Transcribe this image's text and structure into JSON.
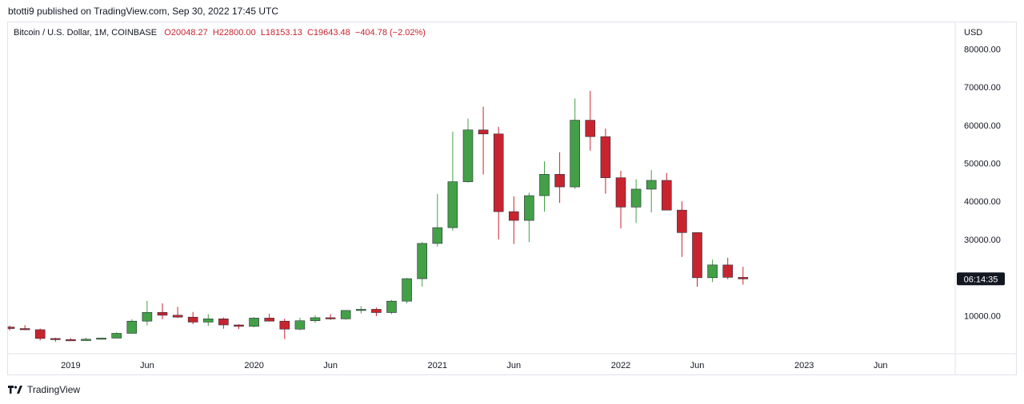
{
  "published": "btotti9 published on TradingView.com, Sep 30, 2022 17:45 UTC",
  "footer": {
    "brand": "TradingView",
    "logo_icon": "tradingview-logo-icon"
  },
  "legend": {
    "symbol": "Bitcoin / U.S. Dollar, 1M, COINBASE",
    "open": "O20048.27",
    "high": "H22800.00",
    "low": "L18153.13",
    "close": "C19643.48",
    "change": "−404.78 (−2.02%)"
  },
  "colors": {
    "up": "#43a047",
    "down": "#c8242f",
    "grid": "#f0f3fa",
    "axis": "#131722",
    "price_tag_bg": "#131722"
  },
  "chart_data": {
    "type": "candlestick",
    "title": "Bitcoin / U.S. Dollar, 1M, COINBASE",
    "currency_label": "USD",
    "ylim": [
      0,
      87000
    ],
    "y_ticks": [
      10000,
      20000,
      30000,
      40000,
      50000,
      60000,
      70000,
      80000
    ],
    "y_tick_labels": [
      "10000.00",
      "20000.00",
      "30000.00",
      "40000.00",
      "50000.00",
      "60000.00",
      "70000.00",
      "80000.00"
    ],
    "x_ticks": [
      {
        "label": "2019",
        "date": "2019-01"
      },
      {
        "label": "Jun",
        "date": "2019-06"
      },
      {
        "label": "2020",
        "date": "2020-01"
      },
      {
        "label": "Jun",
        "date": "2020-06"
      },
      {
        "label": "2021",
        "date": "2021-01"
      },
      {
        "label": "Jun",
        "date": "2021-06"
      },
      {
        "label": "2022",
        "date": "2022-01"
      },
      {
        "label": "Jun",
        "date": "2022-06"
      },
      {
        "label": "2023",
        "date": "2023-01"
      },
      {
        "label": "Jun",
        "date": "2023-06"
      }
    ],
    "last_price_tag": "06:14:35",
    "candles": [
      {
        "date": "2018-09",
        "o": 7000,
        "h": 7400,
        "l": 6100,
        "c": 6600
      },
      {
        "date": "2018-10",
        "o": 6600,
        "h": 7500,
        "l": 6200,
        "c": 6300
      },
      {
        "date": "2018-11",
        "o": 6300,
        "h": 6600,
        "l": 3500,
        "c": 4000
      },
      {
        "date": "2018-12",
        "o": 4000,
        "h": 4200,
        "l": 3150,
        "c": 3700
      },
      {
        "date": "2019-01",
        "o": 3700,
        "h": 4100,
        "l": 3350,
        "c": 3450
      },
      {
        "date": "2019-02",
        "o": 3450,
        "h": 4200,
        "l": 3350,
        "c": 3800
      },
      {
        "date": "2019-03",
        "o": 3800,
        "h": 4150,
        "l": 3700,
        "c": 4100
      },
      {
        "date": "2019-04",
        "o": 4100,
        "h": 5600,
        "l": 4050,
        "c": 5350
      },
      {
        "date": "2019-05",
        "o": 5350,
        "h": 9050,
        "l": 5300,
        "c": 8550
      },
      {
        "date": "2019-06",
        "o": 8550,
        "h": 13880,
        "l": 7450,
        "c": 10850
      },
      {
        "date": "2019-07",
        "o": 10850,
        "h": 13200,
        "l": 9050,
        "c": 10100
      },
      {
        "date": "2019-08",
        "o": 10100,
        "h": 12300,
        "l": 9400,
        "c": 9600
      },
      {
        "date": "2019-09",
        "o": 9600,
        "h": 10950,
        "l": 7750,
        "c": 8300
      },
      {
        "date": "2019-10",
        "o": 8300,
        "h": 10400,
        "l": 7300,
        "c": 9150
      },
      {
        "date": "2019-11",
        "o": 9150,
        "h": 9500,
        "l": 6550,
        "c": 7550
      },
      {
        "date": "2019-12",
        "o": 7550,
        "h": 7700,
        "l": 6450,
        "c": 7200
      },
      {
        "date": "2020-01",
        "o": 7200,
        "h": 9600,
        "l": 6900,
        "c": 9350
      },
      {
        "date": "2020-02",
        "o": 9350,
        "h": 10500,
        "l": 8450,
        "c": 8550
      },
      {
        "date": "2020-03",
        "o": 8550,
        "h": 9200,
        "l": 3850,
        "c": 6450
      },
      {
        "date": "2020-04",
        "o": 6450,
        "h": 9450,
        "l": 6150,
        "c": 8650
      },
      {
        "date": "2020-05",
        "o": 8650,
        "h": 10100,
        "l": 8100,
        "c": 9450
      },
      {
        "date": "2020-06",
        "o": 9450,
        "h": 10400,
        "l": 8900,
        "c": 9150
      },
      {
        "date": "2020-07",
        "o": 9150,
        "h": 11450,
        "l": 8950,
        "c": 11350
      },
      {
        "date": "2020-08",
        "o": 11350,
        "h": 12500,
        "l": 10550,
        "c": 11650
      },
      {
        "date": "2020-09",
        "o": 11650,
        "h": 12100,
        "l": 9850,
        "c": 10800
      },
      {
        "date": "2020-10",
        "o": 10800,
        "h": 14100,
        "l": 10400,
        "c": 13800
      },
      {
        "date": "2020-11",
        "o": 13800,
        "h": 19900,
        "l": 13200,
        "c": 19700
      },
      {
        "date": "2020-12",
        "o": 19700,
        "h": 29300,
        "l": 17600,
        "c": 28950
      },
      {
        "date": "2021-01",
        "o": 28950,
        "h": 41950,
        "l": 28150,
        "c": 33100
      },
      {
        "date": "2021-02",
        "o": 33100,
        "h": 58300,
        "l": 32300,
        "c": 45150
      },
      {
        "date": "2021-03",
        "o": 45150,
        "h": 61750,
        "l": 44950,
        "c": 58750
      },
      {
        "date": "2021-04",
        "o": 58750,
        "h": 64850,
        "l": 47050,
        "c": 57700
      },
      {
        "date": "2021-05",
        "o": 57700,
        "h": 59600,
        "l": 30000,
        "c": 37300
      },
      {
        "date": "2021-06",
        "o": 37300,
        "h": 41300,
        "l": 28800,
        "c": 35000
      },
      {
        "date": "2021-07",
        "o": 35000,
        "h": 42300,
        "l": 29300,
        "c": 41500
      },
      {
        "date": "2021-08",
        "o": 41500,
        "h": 50500,
        "l": 37300,
        "c": 47100
      },
      {
        "date": "2021-09",
        "o": 47100,
        "h": 52900,
        "l": 39600,
        "c": 43800
      },
      {
        "date": "2021-10",
        "o": 43800,
        "h": 67000,
        "l": 43300,
        "c": 61300
      },
      {
        "date": "2021-11",
        "o": 61300,
        "h": 69000,
        "l": 53300,
        "c": 57000
      },
      {
        "date": "2021-12",
        "o": 57000,
        "h": 59100,
        "l": 42000,
        "c": 46200
      },
      {
        "date": "2022-01",
        "o": 46200,
        "h": 48000,
        "l": 32900,
        "c": 38500
      },
      {
        "date": "2022-02",
        "o": 38500,
        "h": 45800,
        "l": 34300,
        "c": 43200
      },
      {
        "date": "2022-03",
        "o": 43200,
        "h": 48200,
        "l": 37100,
        "c": 45500
      },
      {
        "date": "2022-04",
        "o": 45500,
        "h": 47450,
        "l": 37700,
        "c": 37700
      },
      {
        "date": "2022-05",
        "o": 37700,
        "h": 40000,
        "l": 25400,
        "c": 31800
      },
      {
        "date": "2022-06",
        "o": 31800,
        "h": 31900,
        "l": 17600,
        "c": 19950
      },
      {
        "date": "2022-07",
        "o": 19950,
        "h": 24700,
        "l": 18800,
        "c": 23300
      },
      {
        "date": "2022-08",
        "o": 23300,
        "h": 25200,
        "l": 19550,
        "c": 20050
      },
      {
        "date": "2022-09",
        "o": 20048.27,
        "h": 22800,
        "l": 18153.13,
        "c": 19643.48
      }
    ]
  }
}
